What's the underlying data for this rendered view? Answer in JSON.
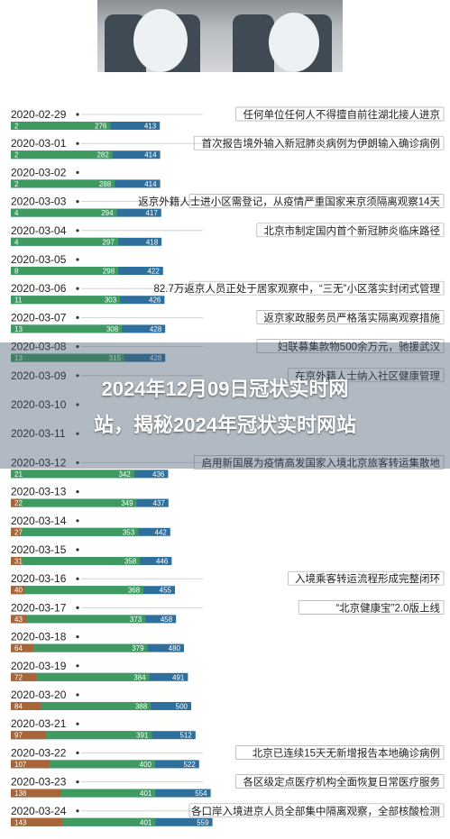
{
  "page": {
    "title_line1": "2024年12月09日冠状实时网",
    "title_line2": "站，揭秘2024年冠状实时网站"
  },
  "colors": {
    "bar_a": "#3f9a62",
    "bar_b": "#2f6f9c",
    "bar_a_late": "#a8653a",
    "date_dot": "#333333"
  },
  "chart_data": {
    "type": "bar",
    "title": "",
    "rows": [
      {
        "date": "2020-02-29",
        "a": 2,
        "g": 276,
        "b": 413,
        "event": "任何单位任何人不得擅自前往湖北接人进京"
      },
      {
        "date": "2020-03-01",
        "a": 2,
        "g": 282,
        "b": 414,
        "event": "首次报告境外输入新冠肺炎病例为伊朗输入确诊病例"
      },
      {
        "date": "2020-03-02",
        "a": 2,
        "g": 288,
        "b": 414,
        "event": ""
      },
      {
        "date": "2020-03-03",
        "a": 4,
        "g": 294,
        "b": 417,
        "event": "返京外籍人士进小区需登记，从疫情严重国家来京须隔离观察14天"
      },
      {
        "date": "2020-03-04",
        "a": 4,
        "g": 297,
        "b": 418,
        "event": "北京市制定国内首个新冠肺炎临床路径"
      },
      {
        "date": "2020-03-05",
        "a": 8,
        "g": 298,
        "b": 422,
        "event": ""
      },
      {
        "date": "2020-03-06",
        "a": 11,
        "g": 303,
        "b": 426,
        "event": "82.7万返京人员正处于居家观察中，“三无”小区落实封闭式管理"
      },
      {
        "date": "2020-03-07",
        "a": 13,
        "g": 308,
        "b": 428,
        "event": "返京家政服务员严格落实隔离观察措施"
      },
      {
        "date": "2020-03-08",
        "a": 13,
        "g": 315,
        "b": 428,
        "event": "妇联募集款物500余万元，驰援武汉"
      },
      {
        "date": "2020-03-09",
        "a": null,
        "g": null,
        "b": null,
        "event": "在京外籍人士纳入社区健康管理"
      },
      {
        "date": "2020-03-10",
        "a": null,
        "g": null,
        "b": null,
        "event": ""
      },
      {
        "date": "2020-03-11",
        "a": null,
        "g": null,
        "b": null,
        "event": ""
      },
      {
        "date": "2020-03-12",
        "a": 21,
        "g": 342,
        "b": 436,
        "event": "启用新国展为疫情高发国家入境北京旅客转运集散地"
      },
      {
        "date": "2020-03-13",
        "a": 22,
        "g": 349,
        "b": 437,
        "event": ""
      },
      {
        "date": "2020-03-14",
        "a": 27,
        "g": 353,
        "b": 442,
        "event": ""
      },
      {
        "date": "2020-03-15",
        "a": 31,
        "g": 358,
        "b": 446,
        "event": ""
      },
      {
        "date": "2020-03-16",
        "a": 40,
        "g": 368,
        "b": 455,
        "event": "入境乘客转运流程形成完整闭环"
      },
      {
        "date": "2020-03-17",
        "a": 43,
        "g": 373,
        "b": 458,
        "event": "“北京健康宝”2.0版上线"
      },
      {
        "date": "2020-03-18",
        "a": 64,
        "g": 379,
        "b": 480,
        "event": ""
      },
      {
        "date": "2020-03-19",
        "a": 72,
        "g": 384,
        "b": 491,
        "event": ""
      },
      {
        "date": "2020-03-20",
        "a": 84,
        "g": 388,
        "b": 500,
        "event": ""
      },
      {
        "date": "2020-03-21",
        "a": 97,
        "g": 391,
        "b": 512,
        "event": ""
      },
      {
        "date": "2020-03-22",
        "a": 107,
        "g": 400,
        "b": 522,
        "event": "北京已连续15天无新增报告本地确诊病例"
      },
      {
        "date": "2020-03-23",
        "a": 138,
        "g": 401,
        "b": 554,
        "event": "各区级定点医疗机构全面恢复日常医疗服务"
      },
      {
        "date": "2020-03-24",
        "a": 143,
        "g": 401,
        "b": 559,
        "event": "各口岸入境进京人员全部集中隔离观察，全部核酸检测"
      }
    ]
  }
}
